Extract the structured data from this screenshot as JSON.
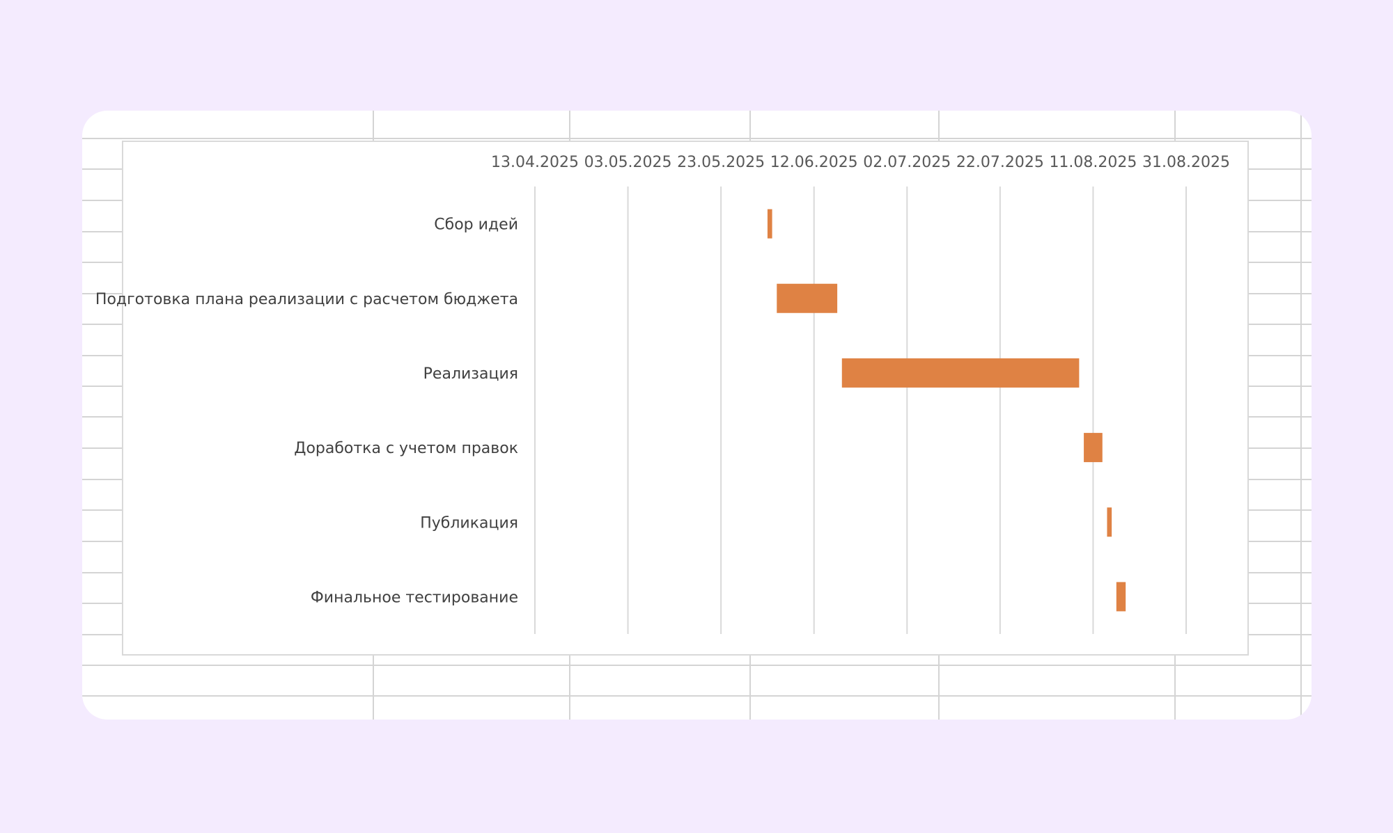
{
  "colors": {
    "page_background": "#f4ebfe",
    "bar": "#df8244",
    "gridline": "#d9d9d9",
    "text": "#404040"
  },
  "chart_data": {
    "type": "bar",
    "orientation": "horizontal",
    "subtype": "gantt",
    "title": "",
    "xlabel": "",
    "ylabel": "",
    "x_axis_position": "top",
    "x_ticks": [
      "13.04.2025",
      "03.05.2025",
      "23.05.2025",
      "12.06.2025",
      "02.07.2025",
      "22.07.2025",
      "11.08.2025",
      "31.08.2025"
    ],
    "xlim": [
      "2025-04-13",
      "2025-08-31"
    ],
    "grid": true,
    "legend": false,
    "categories": [
      "Сбор идей",
      "Подготовка плана реализации с расчетом бюджета",
      "Реализация",
      "Доработка с учетом правок",
      "Публикация",
      "Финальное тестирование"
    ],
    "tasks": [
      {
        "start": "2025-06-02",
        "end": "2025-06-03"
      },
      {
        "start": "2025-06-04",
        "end": "2025-06-17"
      },
      {
        "start": "2025-06-18",
        "end": "2025-08-08"
      },
      {
        "start": "2025-08-09",
        "end": "2025-08-13"
      },
      {
        "start": "2025-08-14",
        "end": "2025-08-15"
      },
      {
        "start": "2025-08-16",
        "end": "2025-08-18"
      }
    ]
  }
}
